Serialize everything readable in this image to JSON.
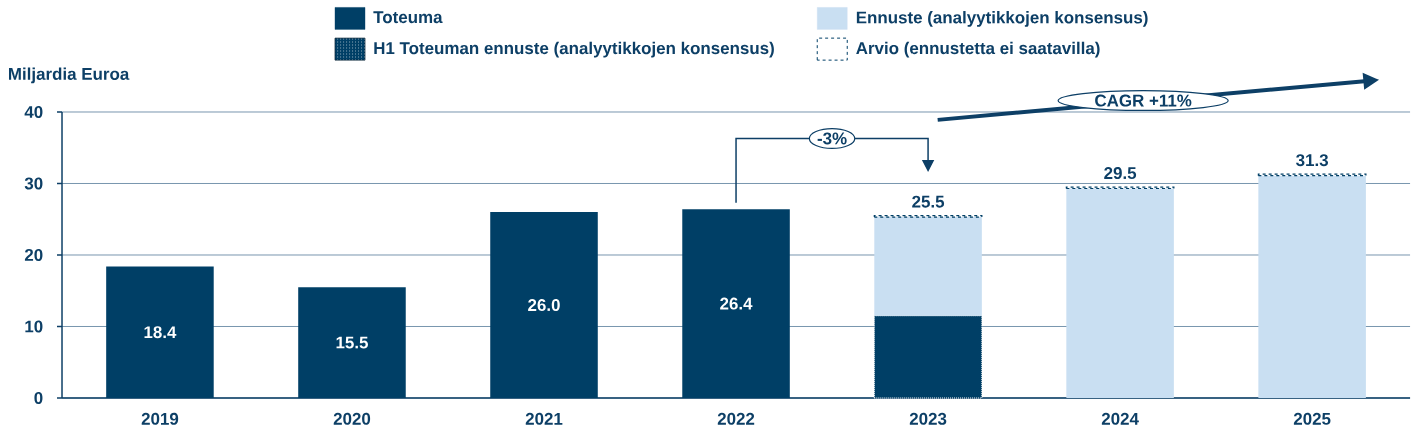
{
  "chart_data": {
    "type": "bar",
    "stacked": true,
    "ylabel": "Miljardia Euroa",
    "categories": [
      "2019",
      "2020",
      "2021",
      "2022",
      "2023",
      "2024",
      "2025"
    ],
    "series": [
      {
        "name": "Toteuma",
        "color": "#003f66",
        "values": [
          18.4,
          15.5,
          26.0,
          26.4,
          null,
          null,
          null
        ],
        "value_labels": [
          "18.4",
          "15.5",
          "26.0",
          "26.4",
          null,
          null,
          null
        ]
      },
      {
        "name": "H1 Toteuman ennuste (analyytikkojen konsensus)",
        "color": "#003f66",
        "line_style": "dotted",
        "values": [
          null,
          null,
          null,
          null,
          11.5,
          null,
          null
        ]
      },
      {
        "name": "Ennuste (analyytikkojen konsensus)",
        "color": "#c9dff2",
        "values": [
          null,
          null,
          null,
          null,
          13.8,
          29.3,
          31.1
        ]
      },
      {
        "name": "Arvio (ennustetta ei saatavilla)",
        "color": "#003f66",
        "line_style": "dashed",
        "values": [
          null,
          null,
          null,
          null,
          0.2,
          0.2,
          0.2
        ]
      }
    ],
    "totals": [
      null,
      null,
      null,
      null,
      "25.5",
      "29.5",
      "31.3"
    ],
    "ylim": [
      0,
      40
    ],
    "yticks": [
      0,
      10,
      20,
      30,
      40
    ],
    "grid": "y",
    "legend": "top",
    "annotations": [
      "-3%",
      "CAGR +11%"
    ]
  }
}
